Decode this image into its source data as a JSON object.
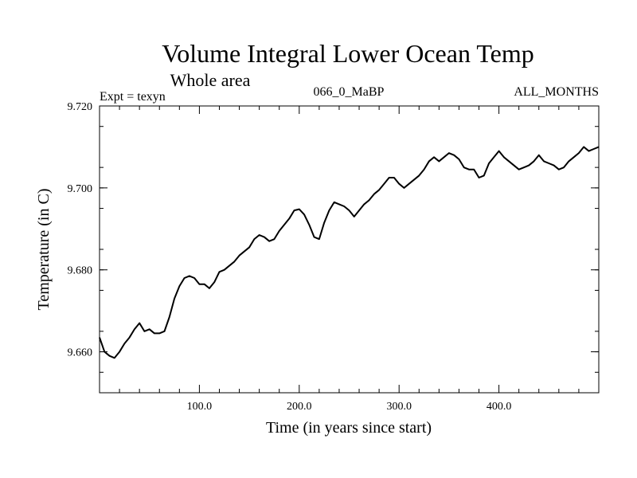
{
  "chart_data": {
    "type": "line",
    "title": "Volume Integral Lower Ocean Temp",
    "subtitle": "Whole area",
    "header_left": "Expt = texyn",
    "header_center": "066_0_MaBP",
    "header_right": "ALL_MONTHS",
    "xlabel": "Time (in years since start)",
    "ylabel": "Temperature (in C)",
    "xlim": [
      0,
      500
    ],
    "ylim": [
      9.65,
      9.72
    ],
    "x_ticks": [
      {
        "value": 100,
        "label": "100.0"
      },
      {
        "value": 200,
        "label": "200.0"
      },
      {
        "value": 300,
        "label": "300.0"
      },
      {
        "value": 400,
        "label": "400.0"
      }
    ],
    "y_ticks": [
      {
        "value": 9.66,
        "label": "9.660"
      },
      {
        "value": 9.68,
        "label": "9.680"
      },
      {
        "value": 9.7,
        "label": "9.700"
      },
      {
        "value": 9.72,
        "label": "9.720"
      }
    ],
    "grid": false,
    "series": [
      {
        "color": "#000000",
        "x": [
          0,
          5,
          10,
          15,
          20,
          25,
          30,
          35,
          40,
          45,
          50,
          55,
          60,
          65,
          70,
          75,
          80,
          85,
          90,
          95,
          100,
          105,
          110,
          115,
          120,
          125,
          130,
          135,
          140,
          145,
          150,
          155,
          160,
          165,
          170,
          175,
          180,
          185,
          190,
          195,
          200,
          205,
          210,
          215,
          220,
          225,
          230,
          235,
          240,
          245,
          250,
          255,
          260,
          265,
          270,
          275,
          280,
          285,
          290,
          295,
          300,
          305,
          310,
          315,
          320,
          325,
          330,
          335,
          340,
          345,
          350,
          355,
          360,
          365,
          370,
          375,
          380,
          385,
          390,
          395,
          400,
          405,
          410,
          415,
          420,
          425,
          430,
          435,
          440,
          445,
          450,
          455,
          460,
          465,
          470,
          475,
          480,
          485,
          490,
          495,
          500
        ],
        "values": [
          9.6635,
          9.66,
          9.659,
          9.6585,
          9.66,
          9.662,
          9.6635,
          9.6655,
          9.667,
          9.665,
          9.6655,
          9.6645,
          9.6645,
          9.665,
          9.6685,
          9.673,
          9.676,
          9.678,
          9.6785,
          9.678,
          9.6765,
          9.6765,
          9.6755,
          9.677,
          9.6795,
          9.68,
          9.681,
          9.682,
          9.6835,
          9.6845,
          9.6855,
          9.6875,
          9.6885,
          9.688,
          9.687,
          9.6875,
          9.6895,
          9.691,
          9.6925,
          9.6945,
          9.6948,
          9.6935,
          9.691,
          9.688,
          9.6875,
          9.6915,
          9.6945,
          9.6965,
          9.696,
          9.6955,
          9.6945,
          9.693,
          9.6945,
          9.696,
          9.697,
          9.6985,
          9.6995,
          9.701,
          9.7025,
          9.7025,
          9.701,
          9.7,
          9.701,
          9.702,
          9.703,
          9.7045,
          9.7065,
          9.7075,
          9.7065,
          9.7075,
          9.7085,
          9.708,
          9.707,
          9.705,
          9.7045,
          9.7045,
          9.7025,
          9.703,
          9.706,
          9.7075,
          9.709,
          9.7075,
          9.7065,
          9.7055,
          9.7045,
          9.705,
          9.7055,
          9.7065,
          9.708,
          9.7065,
          9.706,
          9.7055,
          9.7045,
          9.705,
          9.7065,
          9.7075,
          9.7085,
          9.71,
          9.709,
          9.7095,
          9.71
        ]
      }
    ]
  }
}
